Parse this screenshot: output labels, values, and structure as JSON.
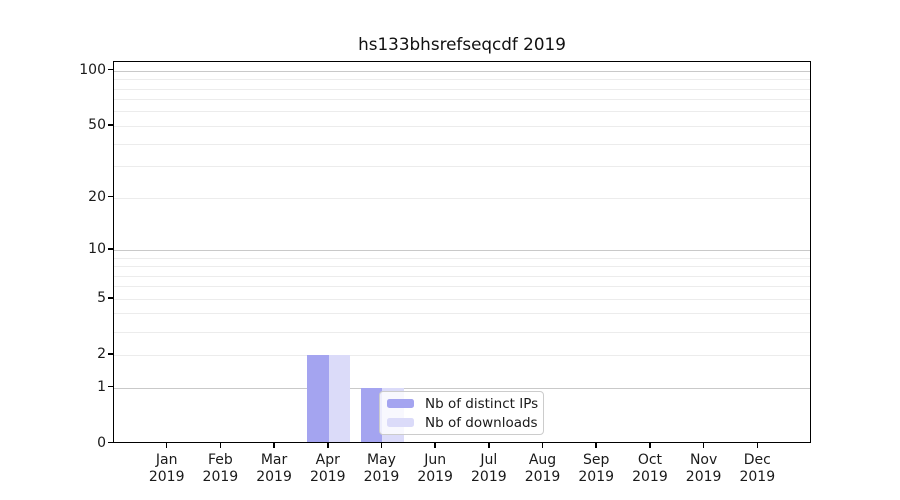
{
  "title": "hs133bhsrefseqcdf 2019",
  "colors": {
    "distinct_ips_bar": "#a4a4f0",
    "downloads_bar": "#dbdbf9",
    "grid_minor": "#ececec",
    "grid_major": "#c9c9c9",
    "axis_line": "#000000",
    "text": "#1a1a1a",
    "legend_border": "#cccccc"
  },
  "x_axis": {
    "months": [
      "Jan",
      "Feb",
      "Mar",
      "Apr",
      "May",
      "Jun",
      "Jul",
      "Aug",
      "Sep",
      "Oct",
      "Nov",
      "Dec"
    ],
    "year": "2019"
  },
  "y_axis": {
    "tick_labels": [
      "0",
      "1",
      "2",
      "5",
      "10",
      "20",
      "50",
      "100"
    ]
  },
  "legend": {
    "items": [
      {
        "label": "Nb of distinct IPs",
        "color": "#a4a4f0"
      },
      {
        "label": "Nb of downloads",
        "color": "#dbdbf9"
      }
    ]
  },
  "chart_data": {
    "type": "bar",
    "title": "hs133bhsrefseqcdf 2019",
    "categories": [
      "Jan 2019",
      "Feb 2019",
      "Mar 2019",
      "Apr 2019",
      "May 2019",
      "Jun 2019",
      "Jul 2019",
      "Aug 2019",
      "Sep 2019",
      "Oct 2019",
      "Nov 2019",
      "Dec 2019"
    ],
    "series": [
      {
        "name": "Nb of distinct IPs",
        "color": "#a4a4f0",
        "values": [
          0,
          0,
          0,
          2,
          1,
          0,
          0,
          0,
          0,
          0,
          0,
          0
        ]
      },
      {
        "name": "Nb of downloads",
        "color": "#dbdbf9",
        "values": [
          0,
          0,
          0,
          2,
          1,
          0,
          0,
          0,
          0,
          0,
          0,
          0
        ]
      }
    ],
    "xlabel": "",
    "ylabel": "",
    "yscale": "log1p",
    "ytick_values": [
      0,
      1,
      2,
      5,
      10,
      20,
      50,
      100
    ],
    "major_grid_values": [
      1,
      10,
      100
    ],
    "minor_grid_values": [
      2,
      3,
      4,
      5,
      6,
      7,
      8,
      9,
      20,
      30,
      40,
      50,
      60,
      70,
      80,
      90
    ],
    "ylim": [
      0,
      112
    ],
    "grid": "horizontal",
    "legend_position": "lower center"
  }
}
